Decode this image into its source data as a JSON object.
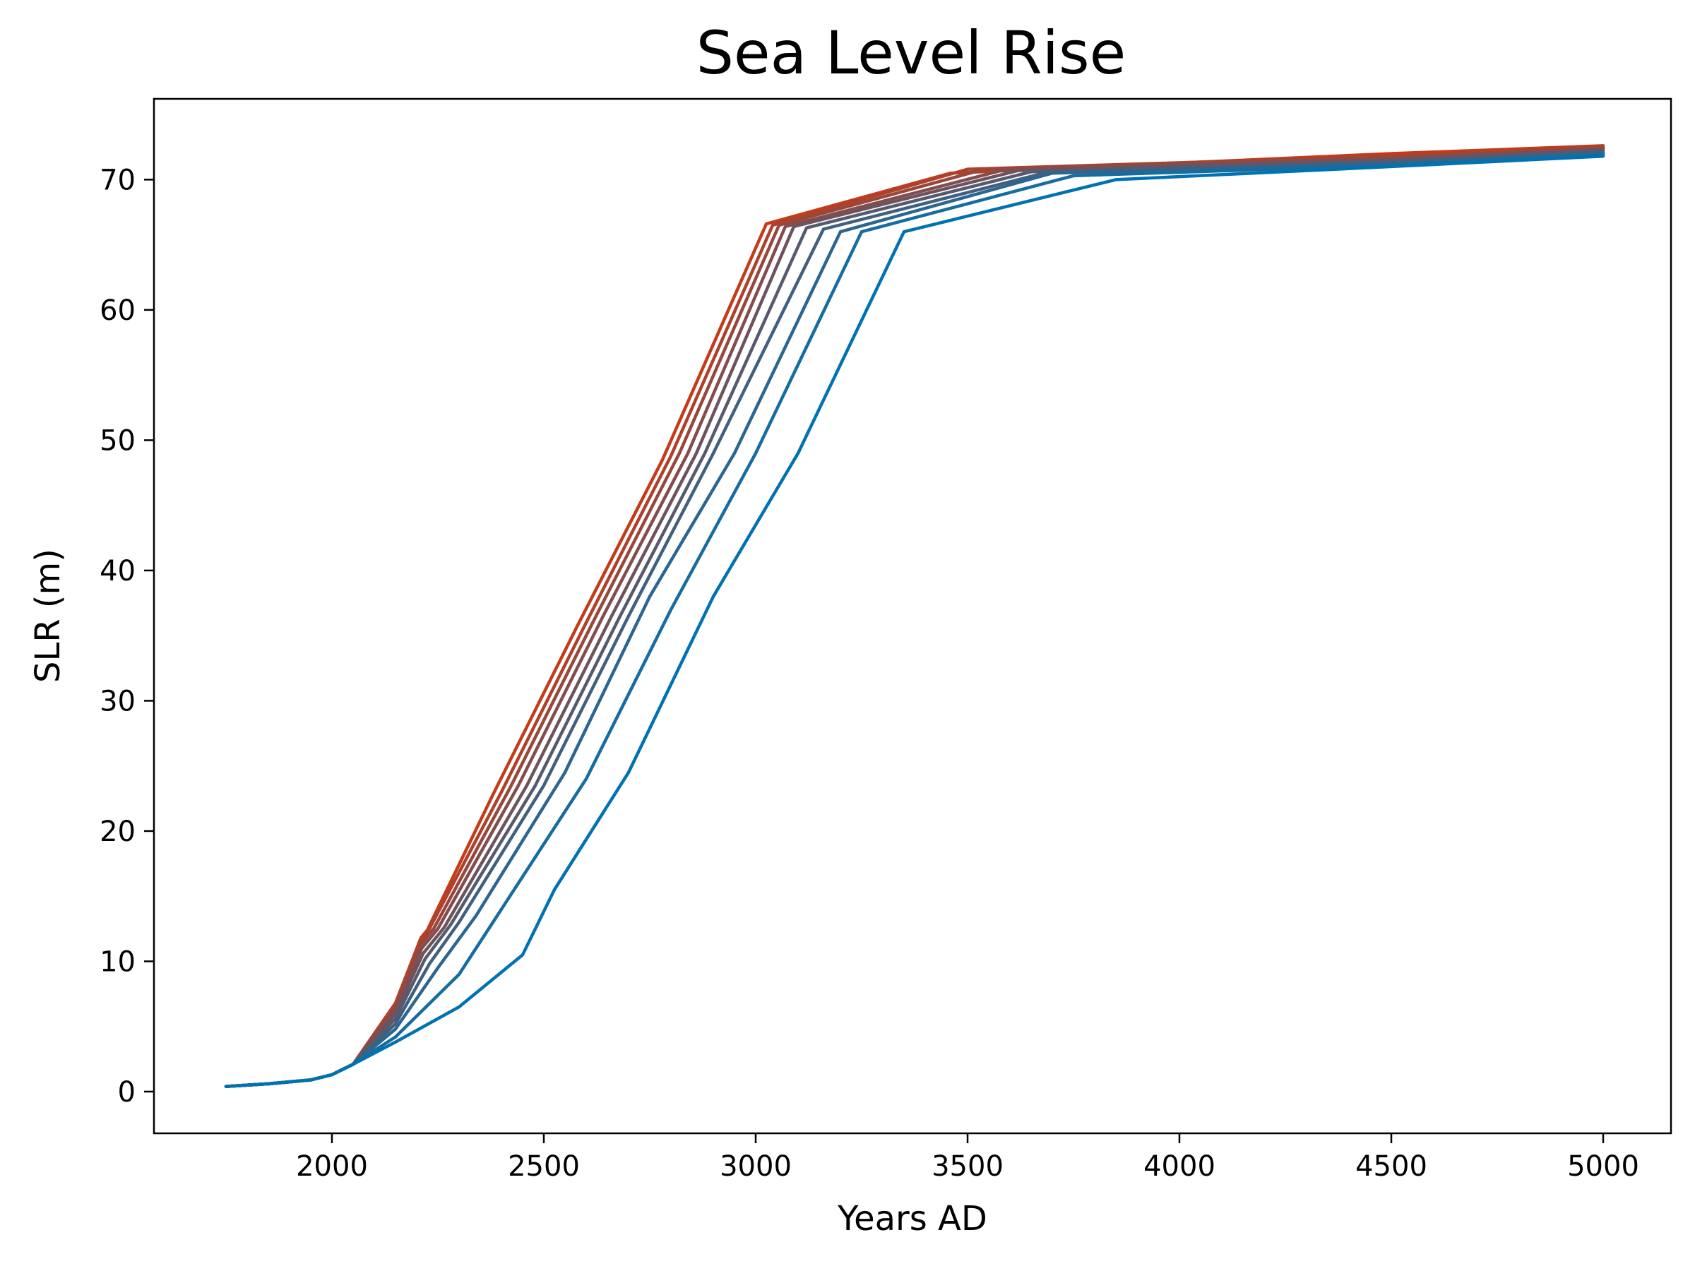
{
  "chart_data": {
    "type": "line",
    "title": "Sea Level Rise",
    "xlabel": "Years AD",
    "ylabel": "SLR (m)",
    "xlim": [
      1580,
      5160
    ],
    "ylim": [
      -3.2,
      76.2
    ],
    "xticks": [
      2000,
      2500,
      3000,
      3500,
      4000,
      4500,
      5000
    ],
    "yticks": [
      0,
      10,
      20,
      30,
      40,
      50,
      60,
      70
    ],
    "grid": false,
    "legend": "none",
    "color_start": "#0072b2",
    "color_end": "#c43b1a",
    "base_x": [
      1750,
      1850,
      1950,
      2000,
      2050
    ],
    "base_y": [
      0.4,
      0.6,
      0.9,
      1.3,
      2.1
    ],
    "series": [
      {
        "x": [
          2050,
          2150,
          2300,
          2450,
          2525,
          2700,
          2900,
          3100,
          3350,
          3850,
          4500,
          5000
        ],
        "y": [
          2.1,
          3.8,
          6.5,
          10.5,
          15.5,
          24.5,
          38.0,
          49.0,
          66.0,
          70.0,
          71.0,
          71.8
        ]
      },
      {
        "x": [
          2050,
          2150,
          2300,
          2400,
          2600,
          2800,
          3000,
          3250,
          3750,
          4500,
          5000
        ],
        "y": [
          2.1,
          4.2,
          9.0,
          14.0,
          24.0,
          37.0,
          49.0,
          66.0,
          70.3,
          71.1,
          71.9
        ]
      },
      {
        "x": [
          2050,
          2150,
          2250,
          2340,
          2550,
          2750,
          2950,
          3200,
          3700,
          4500,
          5000
        ],
        "y": [
          2.1,
          4.8,
          9.5,
          13.5,
          24.5,
          38.0,
          49.0,
          66.0,
          70.5,
          71.2,
          72.0
        ]
      },
      {
        "x": [
          2050,
          2150,
          2230,
          2300,
          2500,
          2700,
          2900,
          3160,
          3680,
          4500,
          5000
        ],
        "y": [
          2.1,
          5.2,
          9.8,
          13.0,
          23.5,
          36.5,
          49.0,
          66.2,
          70.5,
          71.3,
          72.1
        ]
      },
      {
        "x": [
          2050,
          2150,
          2220,
          2280,
          2480,
          2680,
          2880,
          3120,
          3650,
          4500,
          5000
        ],
        "y": [
          2.1,
          5.6,
          10.2,
          12.8,
          23.5,
          36.5,
          49.0,
          66.3,
          70.6,
          71.4,
          72.2
        ]
      },
      {
        "x": [
          2050,
          2150,
          2215,
          2265,
          2460,
          2660,
          2860,
          3090,
          3620,
          4500,
          5000
        ],
        "y": [
          2.1,
          6.0,
          10.6,
          12.6,
          23.5,
          36.5,
          49.0,
          66.4,
          70.7,
          71.5,
          72.3
        ]
      },
      {
        "x": [
          2050,
          2150,
          2212,
          2250,
          2440,
          2640,
          2840,
          3070,
          3580,
          4500,
          5000
        ],
        "y": [
          2.1,
          6.3,
          11.0,
          12.5,
          23.5,
          36.5,
          49.0,
          66.4,
          70.7,
          71.6,
          72.4
        ]
      },
      {
        "x": [
          2050,
          2150,
          2210,
          2240,
          2420,
          2620,
          2820,
          3055,
          3540,
          4500,
          5000
        ],
        "y": [
          2.1,
          6.5,
          11.3,
          12.5,
          23.3,
          36.3,
          49.0,
          66.5,
          70.8,
          71.7,
          72.4
        ]
      },
      {
        "x": [
          2050,
          2150,
          2210,
          2230,
          2400,
          2600,
          2800,
          3040,
          3500,
          4500,
          5000
        ],
        "y": [
          2.1,
          6.7,
          11.6,
          12.5,
          23.0,
          36.0,
          48.8,
          66.5,
          70.8,
          71.8,
          72.5
        ]
      },
      {
        "x": [
          2050,
          2150,
          2210,
          2225,
          2380,
          2580,
          2780,
          3025,
          3460,
          4500,
          5000
        ],
        "y": [
          2.1,
          6.8,
          11.8,
          12.4,
          22.8,
          35.8,
          48.5,
          66.6,
          70.5,
          72.0,
          72.6
        ]
      }
    ]
  }
}
